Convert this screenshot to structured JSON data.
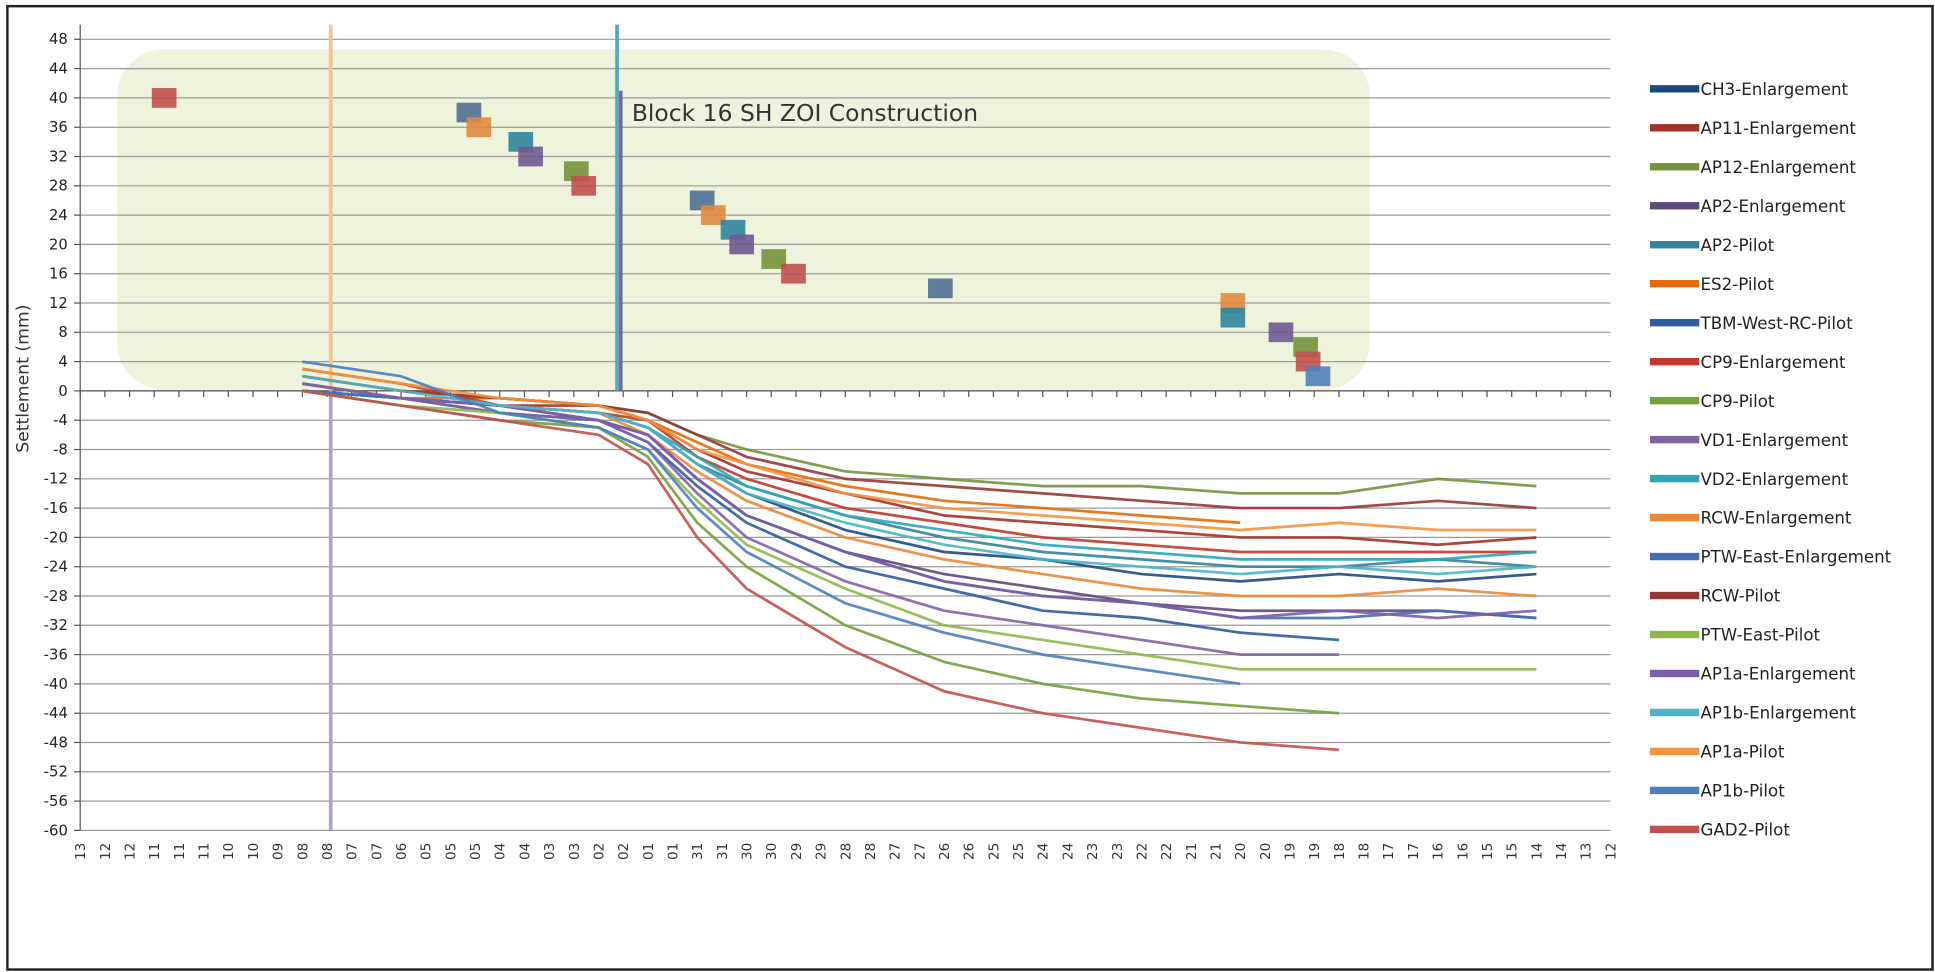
{
  "chart_data": {
    "type": "line",
    "ylabel": "Settlement (mm)",
    "annotation": "Block 16 SH ZOI Construction",
    "ylim": [
      -60,
      50
    ],
    "yticks": [
      -60,
      -56,
      -52,
      -48,
      -44,
      -40,
      -36,
      -32,
      -28,
      -24,
      -20,
      -16,
      -12,
      -8,
      -4,
      0,
      4,
      8,
      12,
      16,
      20,
      24,
      28,
      32,
      36,
      40,
      44,
      48
    ],
    "xlim": [
      0,
      62
    ],
    "xticks": [
      {
        "value": 0,
        "label": "13"
      },
      {
        "value": 1,
        "label": "12"
      },
      {
        "value": 2,
        "label": "12"
      },
      {
        "value": 3,
        "label": "11"
      },
      {
        "value": 4,
        "label": "11"
      },
      {
        "value": 5,
        "label": "11"
      },
      {
        "value": 6,
        "label": "10"
      },
      {
        "value": 7,
        "label": "10"
      },
      {
        "value": 8,
        "label": "09"
      },
      {
        "value": 9,
        "label": "08"
      },
      {
        "value": 10,
        "label": "08"
      },
      {
        "value": 11,
        "label": "07"
      },
      {
        "value": 12,
        "label": "07"
      },
      {
        "value": 13,
        "label": "06"
      },
      {
        "value": 14,
        "label": "05"
      },
      {
        "value": 15,
        "label": "05"
      },
      {
        "value": 16,
        "label": "05"
      },
      {
        "value": 17,
        "label": "04"
      },
      {
        "value": 18,
        "label": "04"
      },
      {
        "value": 19,
        "label": "03"
      },
      {
        "value": 20,
        "label": "03"
      },
      {
        "value": 21,
        "label": "02"
      },
      {
        "value": 22,
        "label": "02"
      },
      {
        "value": 23,
        "label": "01"
      },
      {
        "value": 24,
        "label": "01"
      },
      {
        "value": 25,
        "label": "31"
      },
      {
        "value": 26,
        "label": "31"
      },
      {
        "value": 27,
        "label": "30"
      },
      {
        "value": 28,
        "label": "30"
      },
      {
        "value": 29,
        "label": "29"
      },
      {
        "value": 30,
        "label": "29"
      },
      {
        "value": 31,
        "label": "28"
      },
      {
        "value": 32,
        "label": "28"
      },
      {
        "value": 33,
        "label": "27"
      },
      {
        "value": 34,
        "label": "27"
      },
      {
        "value": 35,
        "label": "26"
      },
      {
        "value": 36,
        "label": "26"
      },
      {
        "value": 37,
        "label": "25"
      },
      {
        "value": 38,
        "label": "25"
      },
      {
        "value": 39,
        "label": "24"
      },
      {
        "value": 40,
        "label": "24"
      },
      {
        "value": 41,
        "label": "23"
      },
      {
        "value": 42,
        "label": "23"
      },
      {
        "value": 43,
        "label": "22"
      },
      {
        "value": 44,
        "label": "22"
      },
      {
        "value": 45,
        "label": "21"
      },
      {
        "value": 46,
        "label": "21"
      },
      {
        "value": 47,
        "label": "20"
      },
      {
        "value": 48,
        "label": "20"
      },
      {
        "value": 49,
        "label": "19"
      },
      {
        "value": 50,
        "label": "19"
      },
      {
        "value": 51,
        "label": "18"
      },
      {
        "value": 52,
        "label": "18"
      },
      {
        "value": 53,
        "label": "17"
      },
      {
        "value": 54,
        "label": "17"
      },
      {
        "value": 55,
        "label": "16"
      },
      {
        "value": 56,
        "label": "16"
      },
      {
        "value": 57,
        "label": "15"
      },
      {
        "value": 58,
        "label": "15"
      },
      {
        "value": 59,
        "label": "14"
      },
      {
        "value": 60,
        "label": "14"
      },
      {
        "value": 61,
        "label": "13"
      },
      {
        "value": 62,
        "label": "12"
      }
    ],
    "grid": true,
    "x": [
      9,
      13,
      17,
      21,
      23,
      25,
      27,
      31,
      35,
      39,
      43,
      47,
      51,
      55,
      59
    ],
    "series": [
      {
        "name": "CH3-Enlargement",
        "color": "#1f497d",
        "values": [
          0,
          -1,
          -2,
          -3,
          -5,
          -10,
          -14,
          -19,
          -22,
          -23,
          -25,
          -26,
          -25,
          -26,
          -25
        ]
      },
      {
        "name": "AP11-Enlargement",
        "color": "#a33228",
        "values": [
          1,
          -1,
          -2,
          -2,
          -4,
          -8,
          -11,
          -14,
          -17,
          -18,
          -19,
          -20,
          -20,
          -21,
          -20
        ]
      },
      {
        "name": "AP12-Enlargement",
        "color": "#76923c",
        "values": [
          2,
          0,
          -1,
          -2,
          -3,
          -6,
          -8,
          -11,
          -12,
          -13,
          -13,
          -14,
          -14,
          -12,
          -13
        ]
      },
      {
        "name": "AP2-Enlargement",
        "color": "#5f497a",
        "values": [
          0,
          -1,
          -2,
          -4,
          -6,
          -12,
          -17,
          -22,
          -25,
          -27,
          -29,
          -30,
          -30,
          -30,
          -31
        ]
      },
      {
        "name": "AP2-Pilot",
        "color": "#31849b",
        "values": [
          0,
          -1,
          -2,
          -3,
          -5,
          -10,
          -13,
          -17,
          -20,
          -22,
          -23,
          -24,
          -24,
          -23,
          -24
        ]
      },
      {
        "name": "ES2-Pilot",
        "color": "#e36c09",
        "values": [
          0,
          -1,
          -1,
          -2,
          -4,
          -7,
          -10,
          -13,
          -15,
          -16,
          -17,
          -18,
          null,
          null,
          null
        ]
      },
      {
        "name": "TBM-West-RC-Pilot",
        "color": "#2e5c9e",
        "values": [
          1,
          -1,
          -3,
          -4,
          -7,
          -13,
          -18,
          -24,
          -27,
          -30,
          -31,
          -33,
          -34,
          null,
          null
        ]
      },
      {
        "name": "CP9-Enlargement",
        "color": "#c0392b",
        "values": [
          3,
          1,
          -2,
          -3,
          -4,
          -9,
          -12,
          -16,
          -18,
          -20,
          -21,
          -22,
          -22,
          -22,
          -22
        ]
      },
      {
        "name": "CP9-Pilot",
        "color": "#77a03a",
        "values": [
          0,
          -2,
          -4,
          -5,
          -9,
          -18,
          -24,
          -32,
          -37,
          -40,
          -42,
          -43,
          -44,
          null,
          null
        ]
      },
      {
        "name": "VD1-Enlargement",
        "color": "#8064a2",
        "values": [
          0,
          -1,
          -3,
          -4,
          -7,
          -14,
          -20,
          -26,
          -30,
          -32,
          -34,
          -36,
          -36,
          null,
          null
        ]
      },
      {
        "name": "VD2-Enlargement",
        "color": "#2fa5b8",
        "values": [
          0,
          -1,
          -2,
          -3,
          -5,
          -9,
          -13,
          -17,
          -19,
          -21,
          -22,
          -23,
          -23,
          -23,
          -22
        ]
      },
      {
        "name": "RCW-Enlargement",
        "color": "#e8883a",
        "values": [
          1,
          -1,
          -2,
          -3,
          -6,
          -11,
          -15,
          -20,
          -23,
          -25,
          -27,
          -28,
          -28,
          -27,
          -28
        ]
      },
      {
        "name": "PTW-East-Enlargement",
        "color": "#3f6fb0",
        "values": [
          0,
          -1,
          -2,
          -4,
          -6,
          -12,
          -17,
          -22,
          -26,
          -28,
          -29,
          -31,
          -31,
          -30,
          -31
        ]
      },
      {
        "name": "RCW-Pilot",
        "color": "#953734",
        "values": [
          2,
          0,
          -1,
          -2,
          -3,
          -6,
          -9,
          -12,
          -13,
          -14,
          -15,
          -16,
          -16,
          -15,
          -16
        ]
      },
      {
        "name": "PTW-East-Pilot",
        "color": "#8fb84a",
        "values": [
          0,
          -2,
          -3,
          -5,
          -8,
          -15,
          -21,
          -27,
          -32,
          -34,
          -36,
          -38,
          -38,
          -38,
          -38
        ]
      },
      {
        "name": "AP1a-Enlargement",
        "color": "#7b5ea7",
        "values": [
          1,
          -1,
          -2,
          -4,
          -6,
          -12,
          -17,
          -22,
          -26,
          -28,
          -29,
          -31,
          -30,
          -31,
          -30
        ]
      },
      {
        "name": "AP1b-Enlargement",
        "color": "#4bb5c6",
        "values": [
          2,
          0,
          -2,
          -3,
          -5,
          -10,
          -14,
          -18,
          -21,
          -23,
          -24,
          -25,
          -24,
          -25,
          -24
        ]
      },
      {
        "name": "AP1a-Pilot",
        "color": "#f29440",
        "values": [
          3,
          1,
          -1,
          -2,
          -4,
          -8,
          -10,
          -14,
          -16,
          -17,
          -18,
          -19,
          -18,
          -19,
          -19
        ]
      },
      {
        "name": "AP1b-Pilot",
        "color": "#4a7ebf",
        "values": [
          4,
          2,
          -3,
          -5,
          -8,
          -16,
          -22,
          -29,
          -33,
          -36,
          -38,
          -40,
          null,
          null,
          null
        ]
      },
      {
        "name": "GAD2-Pilot",
        "color": "#c0504d",
        "values": [
          0,
          -2,
          -4,
          -6,
          -10,
          -20,
          -27,
          -35,
          -41,
          -44,
          -46,
          -48,
          -49,
          null,
          null
        ]
      }
    ],
    "markers": [
      {
        "x": 3.4,
        "y": 40,
        "color": "#c0504d"
      },
      {
        "x": 15.75,
        "y": 38,
        "color": "#4f6f93"
      },
      {
        "x": 16.15,
        "y": 36,
        "color": "#e0883e"
      },
      {
        "x": 17.85,
        "y": 34,
        "color": "#31859c"
      },
      {
        "x": 18.25,
        "y": 32,
        "color": "#6f5a91"
      },
      {
        "x": 20.1,
        "y": 30,
        "color": "#76923c"
      },
      {
        "x": 20.4,
        "y": 28,
        "color": "#c0504d"
      },
      {
        "x": 25.2,
        "y": 26,
        "color": "#4f6f93"
      },
      {
        "x": 25.65,
        "y": 24,
        "color": "#e0883e"
      },
      {
        "x": 26.45,
        "y": 22,
        "color": "#31859c"
      },
      {
        "x": 26.8,
        "y": 20,
        "color": "#6f5a91"
      },
      {
        "x": 28.1,
        "y": 18,
        "color": "#76923c"
      },
      {
        "x": 28.9,
        "y": 16,
        "color": "#c0504d"
      },
      {
        "x": 34.85,
        "y": 14,
        "color": "#4f6f93"
      },
      {
        "x": 46.7,
        "y": 12,
        "color": "#e0883e"
      },
      {
        "x": 46.7,
        "y": 10,
        "color": "#31859c"
      },
      {
        "x": 48.65,
        "y": 8,
        "color": "#6f5a91"
      },
      {
        "x": 49.65,
        "y": 6,
        "color": "#76923c"
      },
      {
        "x": 49.75,
        "y": 4,
        "color": "#c0504d"
      },
      {
        "x": 50.15,
        "y": 2,
        "color": "#4f81bd"
      }
    ],
    "vertical_lines": [
      {
        "x": 10.15,
        "y": [
          0,
          50
        ],
        "color": "#fac090"
      },
      {
        "x": 10.15,
        "y": [
          -60,
          0
        ],
        "color": "#b3a2c7"
      },
      {
        "x": 21.75,
        "y": [
          0,
          50
        ],
        "color": "#4bacc6"
      },
      {
        "x": 21.9,
        "y": [
          0,
          41
        ],
        "color": "#8064a2"
      }
    ]
  }
}
